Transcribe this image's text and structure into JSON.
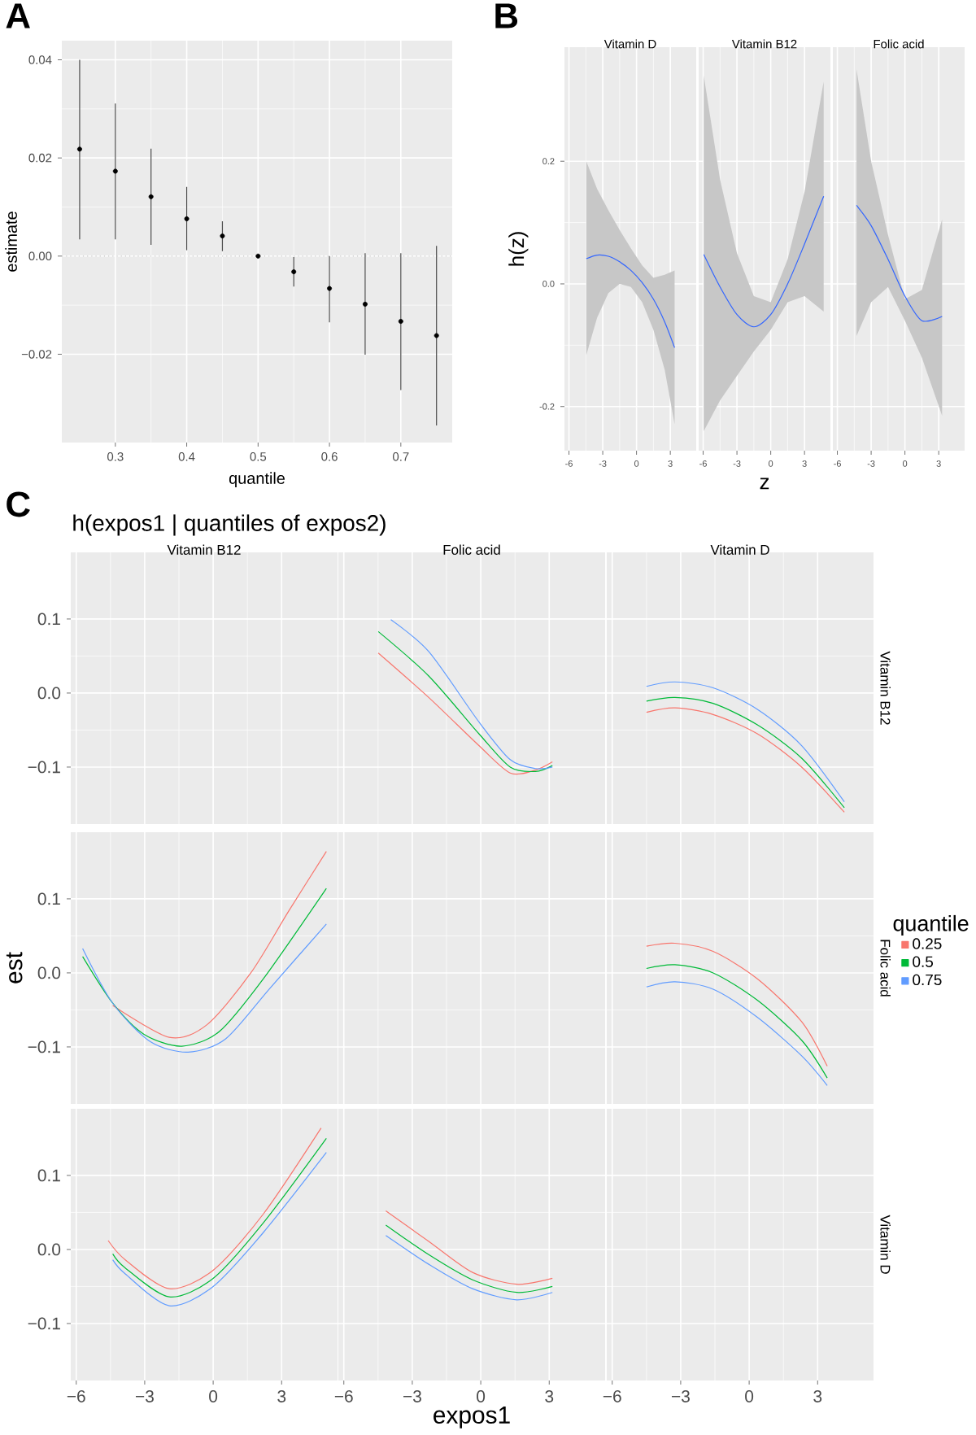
{
  "chart_data": [
    {
      "type": "scatter",
      "annotations": [
        "A"
      ],
      "xlabel": "quantile",
      "ylabel": "estimate",
      "color": "#000000",
      "marker": "circle",
      "grid": true,
      "x": [
        0.25,
        0.3,
        0.35,
        0.4,
        0.45,
        0.5,
        0.55,
        0.6,
        0.65,
        0.7,
        0.75
      ],
      "values": [
        0.0218,
        0.0173,
        0.0121,
        0.0076,
        0.0041,
        0,
        -0.0032,
        -0.0066,
        -0.0098,
        -0.0133,
        -0.0162
      ],
      "errors": [
        [
          0.0034,
          0.04
        ],
        [
          0.0034,
          0.0311
        ],
        [
          0.0023,
          0.0219
        ],
        [
          0.0012,
          0.0141
        ],
        [
          0.001,
          0.0071
        ],
        null,
        [
          -0.0062,
          -0.0002
        ],
        [
          -0.0135,
          0
        ],
        [
          -0.0201,
          0.0006
        ],
        [
          -0.0273,
          0.0006
        ],
        [
          -0.0345,
          0.0021
        ]
      ],
      "xlim": [
        0.225,
        0.772
      ],
      "ylim": [
        -0.038,
        0.0439
      ],
      "xticks": [
        0.3,
        0.4,
        0.5,
        0.6,
        0.7
      ],
      "yticks": [
        {
          "value": -0.02,
          "label": "−0.02"
        },
        {
          "value": 0,
          "label": "0.00"
        },
        0.02,
        0.04
      ],
      "ref_lines": [
        {
          "axis": "y",
          "value": 0,
          "color": "#c8c8c8",
          "line_style": "dotted"
        }
      ]
    },
    {
      "type": "line",
      "annotations": [
        "B"
      ],
      "title": "Vitamin D",
      "ylabel": "h(z)",
      "xlim": [
        -6.4,
        5.3
      ],
      "ylim": [
        -0.272,
        0.386
      ],
      "grid": true,
      "xticks": [
        -6,
        -3,
        0,
        3
      ],
      "yticks": [
        {
          "value": -0.2,
          "label": "-0.2"
        },
        {
          "value": 0,
          "label": "0.0"
        },
        0.2
      ],
      "series": [
        {
          "color": "#3366ff",
          "x": [
            -4.46,
            -3.5,
            -2.5,
            -1.5,
            -0.5,
            0.5,
            1.5,
            2.5,
            3.38
          ],
          "values": [
            0.041,
            0.047,
            0.045,
            0.036,
            0.022,
            0.002,
            -0.025,
            -0.062,
            -0.104
          ],
          "upper": [
            0.2,
            0.155,
            0.12,
            0.088,
            0.058,
            0.03,
            0.01,
            0.015,
            0.022
          ],
          "lower": [
            -0.116,
            -0.055,
            -0.015,
            0.0,
            -0.005,
            -0.03,
            -0.075,
            -0.14,
            -0.229
          ]
        }
      ]
    },
    {
      "type": "line",
      "title": "Vitamin B12",
      "xlabel": "z",
      "tick_labels": "x",
      "xlim": [
        -6.4,
        5.3
      ],
      "ylim": [
        -0.272,
        0.386
      ],
      "grid": true,
      "xticks": [
        -6,
        -3,
        0,
        3
      ],
      "yticks": [
        {
          "value": -0.2,
          "label": null
        },
        {
          "value": 0,
          "label": null
        },
        {
          "value": 0.2,
          "label": null
        }
      ],
      "series": [
        {
          "color": "#3366ff",
          "x": [
            -5.95,
            -4.5,
            -3,
            -1.5,
            0,
            1.5,
            3,
            4.7
          ],
          "values": [
            0.048,
            -0.005,
            -0.05,
            -0.07,
            -0.05,
            0.0,
            0.065,
            0.143
          ],
          "upper": [
            0.34,
            0.17,
            0.05,
            -0.02,
            -0.03,
            0.04,
            0.15,
            0.33
          ],
          "lower": [
            -0.24,
            -0.19,
            -0.15,
            -0.11,
            -0.075,
            -0.03,
            -0.02,
            -0.045
          ]
        }
      ]
    },
    {
      "type": "line",
      "title": "Folic acid",
      "tick_labels": "x",
      "xlim": [
        -6.4,
        5.3
      ],
      "ylim": [
        -0.272,
        0.386
      ],
      "grid": true,
      "xticks": [
        -6,
        -3,
        0,
        3
      ],
      "yticks": [
        {
          "value": -0.2,
          "label": null
        },
        {
          "value": 0,
          "label": null
        },
        {
          "value": 0.2,
          "label": null
        }
      ],
      "series": [
        {
          "color": "#3366ff",
          "x": [
            -4.3,
            -3,
            -1.5,
            0,
            1.5,
            3.3
          ],
          "values": [
            0.128,
            0.095,
            0.04,
            -0.02,
            -0.06,
            -0.053
          ],
          "upper": [
            0.35,
            0.2,
            0.08,
            -0.025,
            -0.01,
            0.105
          ],
          "lower": [
            -0.085,
            -0.03,
            -0.005,
            -0.06,
            -0.12,
            -0.215
          ]
        }
      ]
    },
    {
      "type": "line",
      "annotations": [
        "C",
        "h(expos1 | quantiles of expos2)"
      ],
      "title": "Vitamin B12",
      "tick_labels": "y",
      "xlim": [
        -6.24,
        5.45
      ],
      "ylim": [
        -0.177,
        0.19
      ],
      "grid": true,
      "xticks": [
        {
          "value": -6,
          "label": null
        },
        {
          "value": -3,
          "label": null
        },
        {
          "value": 0,
          "label": null
        },
        {
          "value": 3,
          "label": null
        }
      ],
      "yticks": [
        {
          "value": -0.1,
          "label": "−0.1"
        },
        {
          "value": 0,
          "label": "0.0"
        },
        {
          "value": 0.1,
          "label": "0.1"
        }
      ]
    },
    {
      "type": "line",
      "title": "Folic acid",
      "tick_labels": false,
      "xlim": [
        -6.24,
        5.45
      ],
      "ylim": [
        -0.177,
        0.19
      ],
      "grid": true,
      "xticks": [
        {
          "value": -6,
          "label": null
        },
        {
          "value": -3,
          "label": null
        },
        {
          "value": 0,
          "label": null
        },
        {
          "value": 3,
          "label": null
        }
      ],
      "yticks": [
        {
          "value": -0.1,
          "label": null
        },
        {
          "value": 0,
          "label": null
        },
        {
          "value": 0.1,
          "label": null
        }
      ],
      "series": [
        {
          "color": "#f8766d",
          "x": [
            -4.49,
            -2.28,
            -0.08,
            1.29,
            2.4,
            3.14
          ],
          "values": [
            0.054,
            -0.006,
            -0.071,
            -0.108,
            -0.104,
            -0.093
          ]
        },
        {
          "color": "#00ba38",
          "x": [
            -4.49,
            -2.28,
            -0.08,
            1.29,
            2.4,
            3.14
          ],
          "values": [
            0.083,
            0.023,
            -0.055,
            -0.1,
            -0.106,
            -0.098
          ]
        },
        {
          "color": "#619cff",
          "x": [
            -3.94,
            -2.28,
            -0.08,
            1.29,
            2.4,
            3.14
          ],
          "values": [
            0.099,
            0.056,
            -0.039,
            -0.09,
            -0.102,
            -0.1
          ]
        }
      ]
    },
    {
      "type": "line",
      "title": "Vitamin D",
      "y2label": "Vitamin B12",
      "tick_labels": false,
      "xlim": [
        -6.24,
        5.45
      ],
      "ylim": [
        -0.177,
        0.19
      ],
      "grid": true,
      "xticks": [
        {
          "value": -6,
          "label": null
        },
        {
          "value": -3,
          "label": null
        },
        {
          "value": 0,
          "label": null
        },
        {
          "value": 3,
          "label": null
        }
      ],
      "yticks": [
        {
          "value": -0.1,
          "label": null
        },
        {
          "value": 0,
          "label": null
        },
        {
          "value": 0.1,
          "label": null
        }
      ],
      "series": [
        {
          "color": "#f8766d",
          "x": [
            -4.5,
            -3.25,
            -1.58,
            0.36,
            2.3,
            4.17
          ],
          "values": [
            -0.026,
            -0.02,
            -0.029,
            -0.055,
            -0.1,
            -0.161
          ]
        },
        {
          "color": "#00ba38",
          "x": [
            -4.5,
            -3.25,
            -1.58,
            0.36,
            2.3,
            4.17
          ],
          "values": [
            -0.011,
            -0.006,
            -0.014,
            -0.043,
            -0.088,
            -0.155
          ]
        },
        {
          "color": "#619cff",
          "x": [
            -4.5,
            -3.25,
            -1.58,
            0.36,
            2.3,
            4.17
          ],
          "values": [
            0.009,
            0.015,
            0.007,
            -0.022,
            -0.071,
            -0.147
          ]
        }
      ]
    },
    {
      "type": "line",
      "ylabel": "est",
      "tick_labels": "y",
      "xlim": [
        -6.24,
        5.45
      ],
      "ylim": [
        -0.177,
        0.19
      ],
      "grid": true,
      "xticks": [
        {
          "value": -6,
          "label": null
        },
        {
          "value": -3,
          "label": null
        },
        {
          "value": 0,
          "label": null
        },
        {
          "value": 3,
          "label": null
        }
      ],
      "yticks": [
        {
          "value": -0.1,
          "label": "−0.1"
        },
        {
          "value": 0,
          "label": "0.0"
        },
        {
          "value": 0.1,
          "label": "0.1"
        }
      ],
      "series": [
        {
          "color": "#f8766d",
          "x": [
            -4.4,
            -1.93,
            -0.27,
            1.65,
            3.3,
            4.96
          ],
          "values": [
            -0.044,
            -0.087,
            -0.07,
            0.0,
            0.083,
            0.164
          ]
        },
        {
          "color": "#00ba38",
          "x": [
            -5.72,
            -4.4,
            -3.03,
            -1.38,
            0.28,
            2.2,
            4.96
          ],
          "values": [
            0.022,
            -0.041,
            -0.083,
            -0.099,
            -0.079,
            -0.008,
            0.114
          ]
        },
        {
          "color": "#619cff",
          "x": [
            -5.72,
            -4.4,
            -2.75,
            -1.1,
            0.55,
            2.48,
            4.96
          ],
          "values": [
            0.033,
            -0.041,
            -0.093,
            -0.107,
            -0.089,
            -0.021,
            0.066
          ]
        }
      ]
    },
    {
      "type": "line",
      "tick_labels": false,
      "xlim": [
        -6.24,
        5.45
      ],
      "ylim": [
        -0.177,
        0.19
      ],
      "grid": true,
      "xticks": [
        {
          "value": -6,
          "label": null
        },
        {
          "value": -3,
          "label": null
        },
        {
          "value": 0,
          "label": null
        },
        {
          "value": 3,
          "label": null
        }
      ],
      "yticks": [
        {
          "value": -0.1,
          "label": null
        },
        {
          "value": 0,
          "label": null
        },
        {
          "value": 0.1,
          "label": null
        }
      ]
    },
    {
      "type": "line",
      "y2label": "Folic acid",
      "legend": "right",
      "legend_title": "quantile",
      "tick_labels": false,
      "xlim": [
        -6.24,
        5.45
      ],
      "ylim": [
        -0.177,
        0.19
      ],
      "grid": true,
      "xticks": [
        {
          "value": -6,
          "label": null
        },
        {
          "value": -3,
          "label": null
        },
        {
          "value": 0,
          "label": null
        },
        {
          "value": 3,
          "label": null
        }
      ],
      "yticks": [
        {
          "value": -0.1,
          "label": null
        },
        {
          "value": 0,
          "label": null
        },
        {
          "value": 0.1,
          "label": null
        }
      ],
      "series": [
        {
          "name": "0.25",
          "color": "#f8766d",
          "x": [
            -4.5,
            -3.25,
            -1.58,
            0.36,
            2.3,
            3.42
          ],
          "values": [
            0.036,
            0.04,
            0.029,
            -0.008,
            -0.066,
            -0.126
          ]
        },
        {
          "name": "0.5",
          "color": "#00ba38",
          "x": [
            -4.5,
            -3.25,
            -1.58,
            0.36,
            2.3,
            3.42
          ],
          "values": [
            0.006,
            0.011,
            0.0,
            -0.037,
            -0.091,
            -0.142
          ]
        },
        {
          "name": "0.75",
          "color": "#619cff",
          "x": [
            -4.5,
            -3.25,
            -1.58,
            0.36,
            2.3,
            3.42
          ],
          "values": [
            -0.019,
            -0.012,
            -0.022,
            -0.06,
            -0.112,
            -0.152
          ]
        }
      ]
    },
    {
      "type": "line",
      "xlim": [
        -6.24,
        5.45
      ],
      "ylim": [
        -0.177,
        0.19
      ],
      "grid": true,
      "xticks": [
        {
          "value": -6,
          "label": "−6"
        },
        {
          "value": -3,
          "label": "−3"
        },
        0,
        3
      ],
      "yticks": [
        {
          "value": -0.1,
          "label": "−0.1"
        },
        {
          "value": 0,
          "label": "0.0"
        },
        {
          "value": 0.1,
          "label": "0.1"
        }
      ],
      "series": [
        {
          "color": "#f8766d",
          "x": [
            -4.6,
            -3.85,
            -1.93,
            0.0,
            2.2,
            4.73
          ],
          "values": [
            0.012,
            -0.014,
            -0.053,
            -0.028,
            0.048,
            0.164
          ]
        },
        {
          "color": "#00ba38",
          "x": [
            -4.4,
            -3.85,
            -1.93,
            0.0,
            2.2,
            4.96
          ],
          "values": [
            -0.006,
            -0.025,
            -0.064,
            -0.039,
            0.036,
            0.15
          ]
        },
        {
          "color": "#619cff",
          "x": [
            -4.4,
            -3.85,
            -1.93,
            0.0,
            2.2,
            4.96
          ],
          "values": [
            -0.014,
            -0.033,
            -0.076,
            -0.05,
            0.023,
            0.131
          ]
        }
      ]
    },
    {
      "type": "line",
      "xlabel": "expos1",
      "tick_labels": "x",
      "xlim": [
        -6.24,
        5.45
      ],
      "ylim": [
        -0.177,
        0.19
      ],
      "grid": true,
      "xticks": [
        {
          "value": -6,
          "label": "−6"
        },
        {
          "value": -3,
          "label": "−3"
        },
        0,
        3
      ],
      "yticks": [
        {
          "value": -0.1,
          "label": null
        },
        {
          "value": 0,
          "label": null
        },
        {
          "value": 0.1,
          "label": null
        }
      ],
      "series": [
        {
          "color": "#f8766d",
          "x": [
            -4.16,
            -2.28,
            -0.36,
            1.57,
            3.14
          ],
          "values": [
            0.052,
            0.011,
            -0.031,
            -0.047,
            -0.039
          ]
        },
        {
          "color": "#00ba38",
          "x": [
            -4.16,
            -2.28,
            -0.36,
            1.57,
            3.14
          ],
          "values": [
            0.033,
            -0.007,
            -0.041,
            -0.058,
            -0.05
          ]
        },
        {
          "color": "#619cff",
          "x": [
            -4.16,
            -2.28,
            -0.36,
            1.57,
            3.14
          ],
          "values": [
            0.019,
            -0.02,
            -0.053,
            -0.068,
            -0.058
          ]
        }
      ]
    },
    {
      "type": "line",
      "y2label": "Vitamin D",
      "tick_labels": "x",
      "xlim": [
        -6.24,
        5.45
      ],
      "ylim": [
        -0.177,
        0.19
      ],
      "grid": true,
      "xticks": [
        {
          "value": -6,
          "label": "−6"
        },
        {
          "value": -3,
          "label": "−3"
        },
        0,
        3
      ],
      "yticks": [
        {
          "value": -0.1,
          "label": null
        },
        {
          "value": 0,
          "label": null
        },
        {
          "value": 0.1,
          "label": null
        }
      ]
    }
  ]
}
